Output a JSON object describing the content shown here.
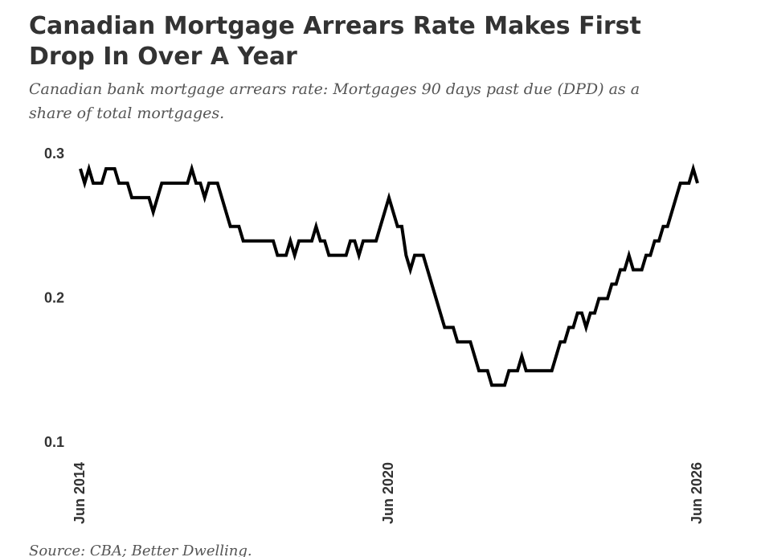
{
  "chart_data": {
    "type": "line",
    "title": "Canadian Mortgage Arrears Rate Makes First Drop In Over A Year",
    "subtitle": "Canadian bank mortgage arrears rate: Mortgages 90 days past due (DPD) as a share of total mortgages.",
    "source": "Source: CBA; Better Dwelling.",
    "categories": [
      "Jun 2014",
      null,
      null,
      null,
      null,
      null,
      null,
      null,
      null,
      null,
      null,
      null,
      null,
      null,
      null,
      null,
      null,
      null,
      null,
      null,
      null,
      null,
      null,
      null,
      null,
      null,
      null,
      null,
      null,
      null,
      null,
      null,
      null,
      null,
      null,
      null,
      null,
      null,
      null,
      null,
      null,
      null,
      null,
      null,
      null,
      null,
      null,
      null,
      null,
      null,
      null,
      null,
      null,
      null,
      null,
      null,
      null,
      null,
      null,
      null,
      null,
      null,
      null,
      null,
      null,
      null,
      null,
      null,
      null,
      null,
      null,
      null,
      "Jun 2020",
      null,
      null,
      null,
      null,
      null,
      null,
      null,
      null,
      null,
      null,
      null,
      null,
      null,
      null,
      null,
      null,
      null,
      null,
      null,
      null,
      null,
      null,
      null,
      null,
      null,
      null,
      null,
      null,
      null,
      null,
      null,
      null,
      null,
      null,
      null,
      null,
      null,
      null,
      null,
      null,
      null,
      null,
      null,
      null,
      null,
      null,
      null,
      null,
      null,
      null,
      null,
      null,
      null,
      null,
      null,
      null,
      null,
      null,
      null,
      null,
      null,
      null,
      null,
      null,
      null,
      null,
      null,
      null,
      null,
      null,
      null,
      "Jun 2026"
    ],
    "values": [
      0.29,
      0.28,
      0.29,
      0.28,
      0.28,
      0.28,
      0.29,
      0.29,
      0.29,
      0.28,
      0.28,
      0.28,
      0.27,
      0.27,
      0.27,
      0.27,
      0.27,
      0.26,
      0.27,
      0.28,
      0.28,
      0.28,
      0.28,
      0.28,
      0.28,
      0.28,
      0.29,
      0.28,
      0.28,
      0.27,
      0.28,
      0.28,
      0.28,
      0.27,
      0.26,
      0.25,
      0.25,
      0.25,
      0.24,
      0.24,
      0.24,
      0.24,
      0.24,
      0.24,
      0.24,
      0.24,
      0.23,
      0.23,
      0.23,
      0.24,
      0.23,
      0.24,
      0.24,
      0.24,
      0.24,
      0.25,
      0.24,
      0.24,
      0.23,
      0.23,
      0.23,
      0.23,
      0.23,
      0.24,
      0.24,
      0.23,
      0.24,
      0.24,
      0.24,
      0.24,
      0.25,
      0.26,
      0.27,
      0.26,
      0.25,
      0.25,
      0.23,
      0.22,
      0.23,
      0.23,
      0.23,
      0.22,
      0.21,
      0.2,
      0.19,
      0.18,
      0.18,
      0.18,
      0.17,
      0.17,
      0.17,
      0.17,
      0.16,
      0.15,
      0.15,
      0.15,
      0.14,
      0.14,
      0.14,
      0.14,
      0.15,
      0.15,
      0.15,
      0.16,
      0.15,
      0.15,
      0.15,
      0.15,
      0.15,
      0.15,
      0.15,
      0.16,
      0.17,
      0.17,
      0.18,
      0.18,
      0.19,
      0.19,
      0.18,
      0.19,
      0.19,
      0.2,
      0.2,
      0.2,
      0.21,
      0.21,
      0.22,
      0.22,
      0.23,
      0.22,
      0.22,
      0.22,
      0.23,
      0.23,
      0.24,
      0.24,
      0.25,
      0.25,
      0.26,
      0.27,
      0.28,
      0.28,
      0.28,
      0.29,
      0.28
    ],
    "color": "#000000",
    "ylim": [
      0.1,
      0.3
    ],
    "yticks": [
      0.1,
      0.2,
      0.3
    ],
    "grid": false
  }
}
